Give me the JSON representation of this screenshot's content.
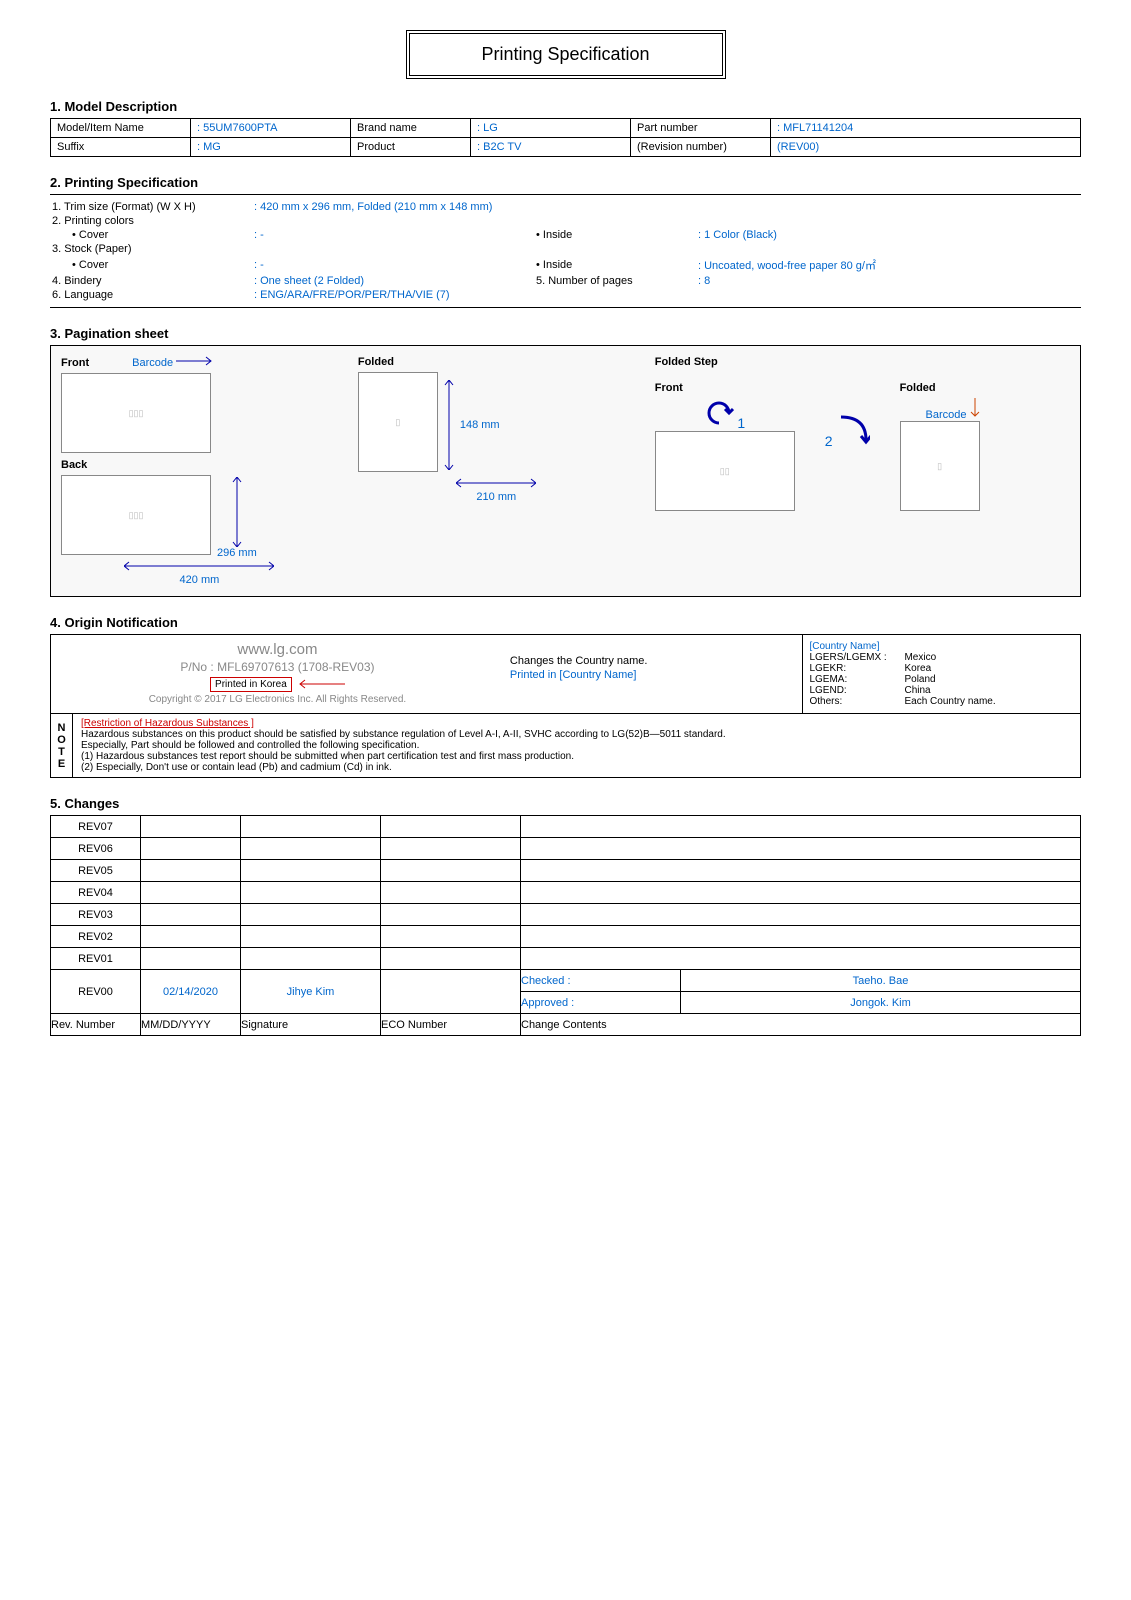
{
  "title": "Printing Specification",
  "sections": {
    "s1": {
      "header": "1. Model Description",
      "fields": {
        "model_label": "Model/Item Name",
        "model_val": ": 55UM7600PTA",
        "brand_label": "Brand name",
        "brand_val": ": LG",
        "part_label": "Part number",
        "part_val": ": MFL71141204",
        "suffix_label": "Suffix",
        "suffix_val": ": MG",
        "product_label": "Product",
        "product_val": ": B2C TV",
        "rev_label": "(Revision number)",
        "rev_val": "(REV00)"
      }
    },
    "s2": {
      "header": "2. Printing Specification",
      "rows": {
        "r1l": "1. Trim size (Format) (W X H)",
        "r1v": ": 420 mm x 296 mm, Folded (210 mm x 148 mm)",
        "r2l": "2. Printing colors",
        "r2al": "• Cover",
        "r2av": ": -",
        "r2bl": "• Inside",
        "r2bv": ": 1 Color (Black)",
        "r3l": "3. Stock (Paper)",
        "r3al": "• Cover",
        "r3av": ": -",
        "r3bl": "• Inside",
        "r3bv": ": Uncoated, wood-free paper 80 g/㎡",
        "r4l": "4. Bindery",
        "r4v": ": One sheet (2 Folded)",
        "r5l": "5. Number of pages",
        "r5v": ": 8",
        "r6l": "6. Language",
        "r6v": ": ENG/ARA/FRE/POR/PER/THA/VIE (7)"
      }
    },
    "s3": {
      "header": "3. Pagination sheet",
      "labels": {
        "front": "Front",
        "barcode": "Barcode",
        "folded": "Folded",
        "back": "Back",
        "folded_step": "Folded Step",
        "d148": "148 mm",
        "d210": "210 mm",
        "d296": "296 mm",
        "d420": "420 mm",
        "n1": "1",
        "n2": "2"
      }
    },
    "s4": {
      "header": "4. Origin Notification",
      "left": {
        "url": "www.lg.com",
        "pno": "P/No : MFL69707613 (1708-REV03)",
        "printed": "Printed in Korea",
        "copyright": "Copyright © 2017 LG Electronics Inc. All Rights Reserved."
      },
      "mid": {
        "l1": "Changes the Country name.",
        "l2": "Printed in [Country Name]"
      },
      "right": {
        "hdr": "[Country Name]",
        "lines": [
          [
            "LGERS/LGEMX :",
            "Mexico"
          ],
          [
            "LGEKR:",
            "Korea"
          ],
          [
            "LGEMA:",
            "Poland"
          ],
          [
            "LGEND:",
            "China"
          ],
          [
            "Others:",
            "Each Country name."
          ]
        ]
      },
      "note": {
        "side": "NOTE",
        "title": "[Restriction of Hazardous Substances ]",
        "l1": "Hazardous substances on this product should be satisfied by substance regulation of Level A-I, A-II, SVHC according to LG(52)B—5011 standard.",
        "l2": "Especially, Part should be followed and controlled the following specification.",
        "l3": "(1) Hazardous substances test report should be submitted when part certification test and first mass production.",
        "l4": "(2) Especially, Don't use or contain lead (Pb) and cadmium (Cd) in ink."
      }
    },
    "s5": {
      "header": "5. Changes",
      "revs": [
        "REV07",
        "REV06",
        "REV05",
        "REV04",
        "REV03",
        "REV02",
        "REV01"
      ],
      "rev00": {
        "label": "REV00",
        "date": "02/14/2020",
        "sig": "Jihye Kim",
        "checked_l": "Checked :",
        "checked_v": "Taeho. Bae",
        "approved_l": "Approved :",
        "approved_v": "Jongok. Kim"
      },
      "footer": {
        "c1": "Rev. Number",
        "c2": "MM/DD/YYYY",
        "c3": "Signature",
        "c4": "ECO Number",
        "c5": "Change Contents"
      }
    }
  }
}
